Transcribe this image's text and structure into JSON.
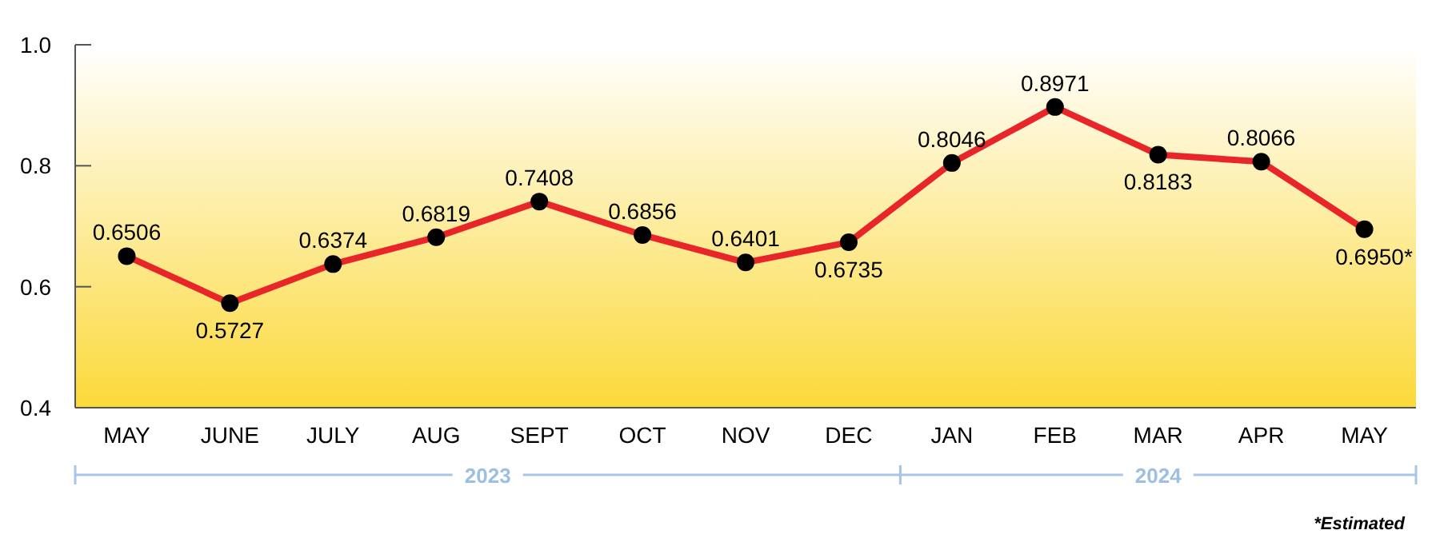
{
  "chart_data": {
    "type": "line",
    "categories": [
      "MAY",
      "JUNE",
      "JULY",
      "AUG",
      "SEPT",
      "OCT",
      "NOV",
      "DEC",
      "JAN",
      "FEB",
      "MAR",
      "APR",
      "MAY"
    ],
    "series": [
      {
        "color": "#e8262a",
        "values": [
          0.6506,
          0.5727,
          0.6374,
          0.6819,
          0.7408,
          0.6856,
          0.6401,
          0.6735,
          0.8046,
          0.8971,
          0.8183,
          0.8066,
          0.695
        ],
        "value_labels": [
          "0.6506",
          "0.5727",
          "0.6374",
          "0.6819",
          "0.7408",
          "0.6856",
          "0.6401",
          "0.6735",
          "0.8046",
          "0.8971",
          "0.8183",
          "0.8066",
          "0.6950*"
        ]
      }
    ],
    "ylim": [
      0.4,
      1.0
    ],
    "yticks": [
      0.4,
      0.6,
      0.8,
      {
        "value": 1.0,
        "label": "1.0"
      }
    ],
    "grid": false,
    "marker": "circle",
    "line_style": "solid",
    "annotations": [
      "2023",
      "2024",
      "*Estimated"
    ]
  }
}
